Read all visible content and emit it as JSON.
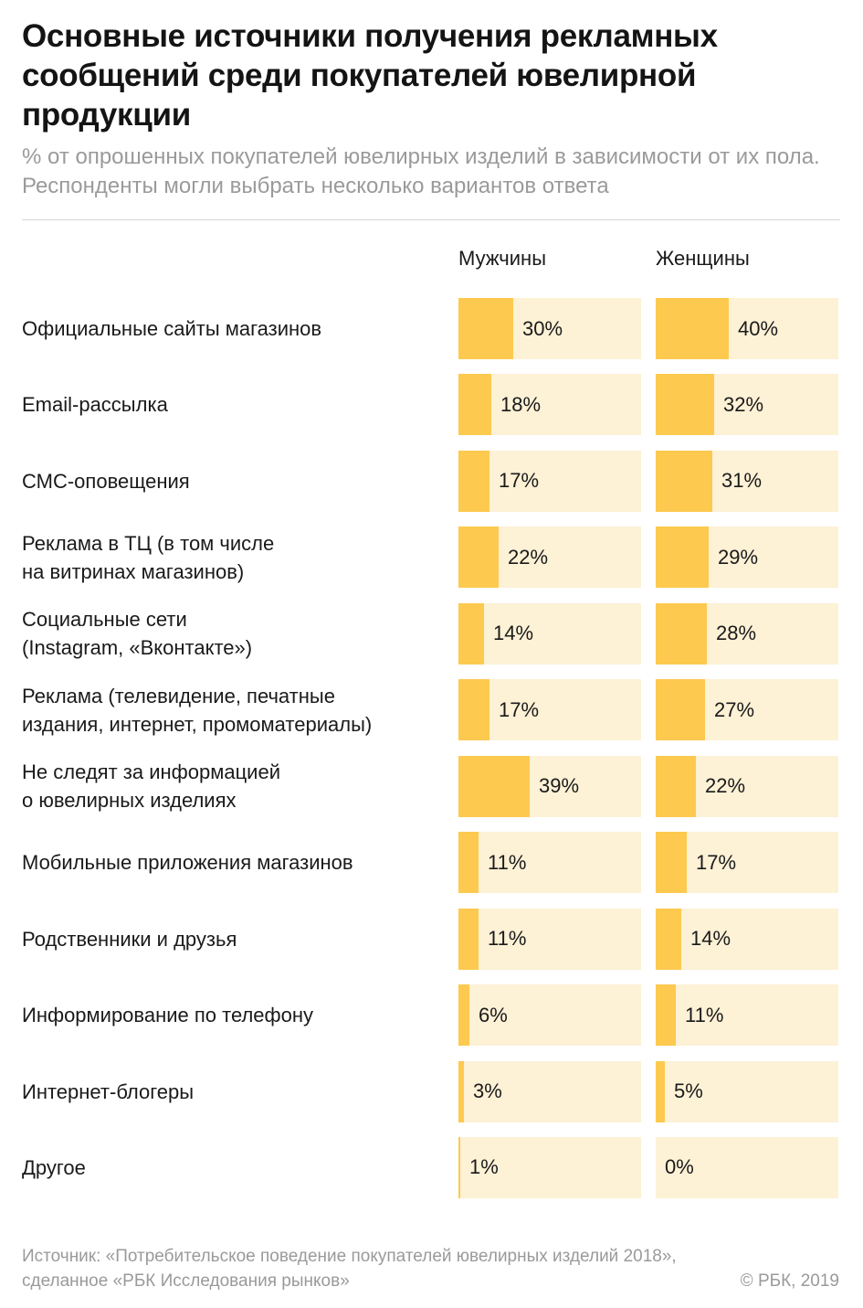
{
  "chart_data": {
    "type": "bar",
    "title": "Основные источники получения рекламных сообщений среди покупателей ювелирной продукции",
    "subtitle": "% от опрошенных покупателей ювелирных изделий в зависимости от их пола. Респонденты могли выбрать несколько вариантов ответа",
    "categories": [
      "Официальные сайты магазинов",
      "Email-рассылка",
      "СМС-оповещения",
      "Реклама в ТЦ (в том числе\nна витринах магазинов)",
      "Социальные сети\n(Instagram, «Вконтакте»)",
      "Реклама (телевидение, печатные\nиздания, интернет, промоматериалы)",
      "Не следят за информацией\nо ювелирных изделиях",
      "Мобильные приложения магазинов",
      "Родственники и друзья",
      "Информирование по телефону",
      "Интернет-блогеры",
      "Другое"
    ],
    "series": [
      {
        "name": "Мужчины",
        "values": [
          30,
          18,
          17,
          22,
          14,
          17,
          39,
          11,
          11,
          6,
          3,
          1
        ]
      },
      {
        "name": "Женщины",
        "values": [
          40,
          32,
          31,
          29,
          28,
          27,
          22,
          17,
          14,
          11,
          5,
          0
        ]
      }
    ],
    "value_suffix": "%",
    "xlim": [
      0,
      100
    ],
    "colors": {
      "fill": "#fdc94f",
      "track": "#fdf1d6"
    }
  },
  "footer": {
    "source": "Источник:  «Потребительское поведение покупателей ювелирных изделий 2018», сделанное «РБК Исследования рынков»",
    "copyright": "© РБК, 2019"
  }
}
